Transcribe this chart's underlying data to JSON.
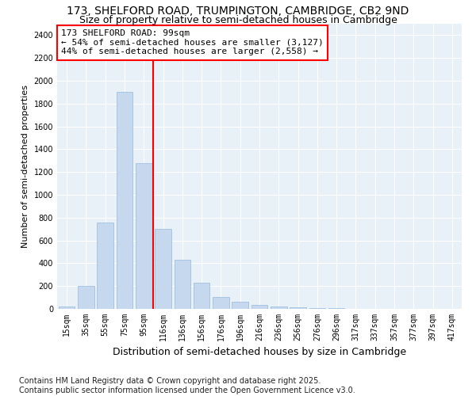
{
  "title1": "173, SHELFORD ROAD, TRUMPINGTON, CAMBRIDGE, CB2 9ND",
  "title2": "Size of property relative to semi-detached houses in Cambridge",
  "xlabel": "Distribution of semi-detached houses by size in Cambridge",
  "ylabel": "Number of semi-detached properties",
  "categories": [
    "15sqm",
    "35sqm",
    "55sqm",
    "75sqm",
    "95sqm",
    "116sqm",
    "136sqm",
    "156sqm",
    "176sqm",
    "196sqm",
    "216sqm",
    "236sqm",
    "256sqm",
    "276sqm",
    "296sqm",
    "317sqm",
    "337sqm",
    "357sqm",
    "377sqm",
    "397sqm",
    "417sqm"
  ],
  "values": [
    20,
    200,
    760,
    1900,
    1280,
    700,
    430,
    230,
    105,
    60,
    35,
    20,
    12,
    5,
    5,
    2,
    0,
    0,
    0,
    0,
    0
  ],
  "bar_color": "#c5d8ee",
  "bar_edge_color": "#a0c0e0",
  "vline_x_index": 4.5,
  "vline_color": "red",
  "annotation_title": "173 SHELFORD ROAD: 99sqm",
  "annotation_line1": "← 54% of semi-detached houses are smaller (3,127)",
  "annotation_line2": "44% of semi-detached houses are larger (2,558) →",
  "annotation_box_color": "white",
  "annotation_edge_color": "red",
  "ylim": [
    0,
    2500
  ],
  "yticks": [
    0,
    200,
    400,
    600,
    800,
    1000,
    1200,
    1400,
    1600,
    1800,
    2000,
    2200,
    2400
  ],
  "background_color": "#e8f0f8",
  "grid_color": "#ffffff",
  "footer1": "Contains HM Land Registry data © Crown copyright and database right 2025.",
  "footer2": "Contains public sector information licensed under the Open Government Licence v3.0.",
  "title_fontsize": 10,
  "subtitle_fontsize": 9,
  "tick_fontsize": 7,
  "ylabel_fontsize": 8,
  "xlabel_fontsize": 9,
  "footer_fontsize": 7,
  "annot_fontsize": 8
}
